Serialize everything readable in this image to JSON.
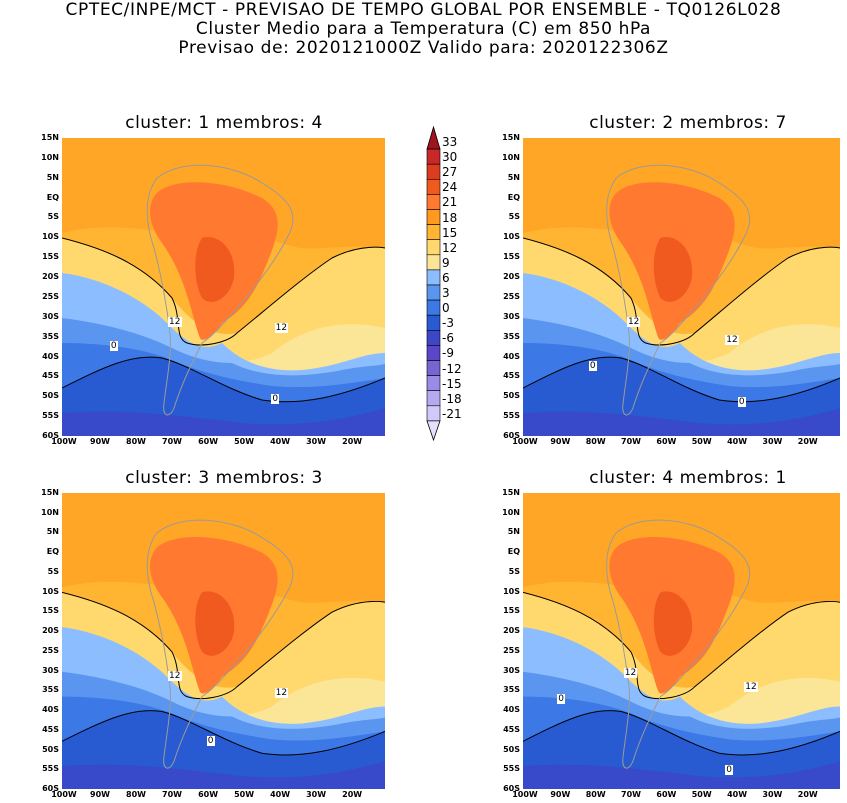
{
  "header": {
    "line1": "CPTEC/INPE/MCT - PREVISAO DE TEMPO GLOBAL POR ENSEMBLE - TQ0126L028",
    "line2": "Cluster Medio para a Temperatura (C) em 850 hPa",
    "line3": "Previsao de: 2020121000Z    Valido para: 2020122306Z"
  },
  "panels": [
    {
      "title": "cluster: 1   membros: 4",
      "contour_labels": [
        "12",
        "12",
        "0",
        "0"
      ]
    },
    {
      "title": "cluster: 2   membros: 7",
      "contour_labels": [
        "12",
        "12",
        "0",
        "0"
      ]
    },
    {
      "title": "cluster: 3   membros: 3",
      "contour_labels": [
        "12",
        "12",
        "0"
      ]
    },
    {
      "title": "cluster: 4   membros: 1",
      "contour_labels": [
        "12",
        "12",
        "0",
        "0"
      ]
    }
  ],
  "lat_labels": [
    "15N",
    "10N",
    "5N",
    "EQ",
    "5S",
    "10S",
    "15S",
    "20S",
    "25S",
    "30S",
    "35S",
    "40S",
    "45S",
    "50S",
    "55S",
    "60S"
  ],
  "lon_labels": [
    "100W",
    "90W",
    "80W",
    "70W",
    "60W",
    "50W",
    "40W",
    "30W",
    "20W"
  ],
  "colorbar": {
    "levels": [
      "33",
      "30",
      "27",
      "24",
      "21",
      "18",
      "15",
      "12",
      "9",
      "6",
      "3",
      "0",
      "-3",
      "-6",
      "-9",
      "-12",
      "-15",
      "-18",
      "-21"
    ],
    "colors": [
      "#a0141e",
      "#c82828",
      "#dc3c20",
      "#f05a1e",
      "#ff7a30",
      "#ff9a1e",
      "#ffb432",
      "#ffd86e",
      "#fae696",
      "#8cbeff",
      "#5a96f0",
      "#3c78e6",
      "#285ad2",
      "#3c46c8",
      "#5a46c8",
      "#7864d2",
      "#9a8ce6",
      "#b4aaf0",
      "#d2c8fa",
      "#e6e0ff"
    ]
  }
}
